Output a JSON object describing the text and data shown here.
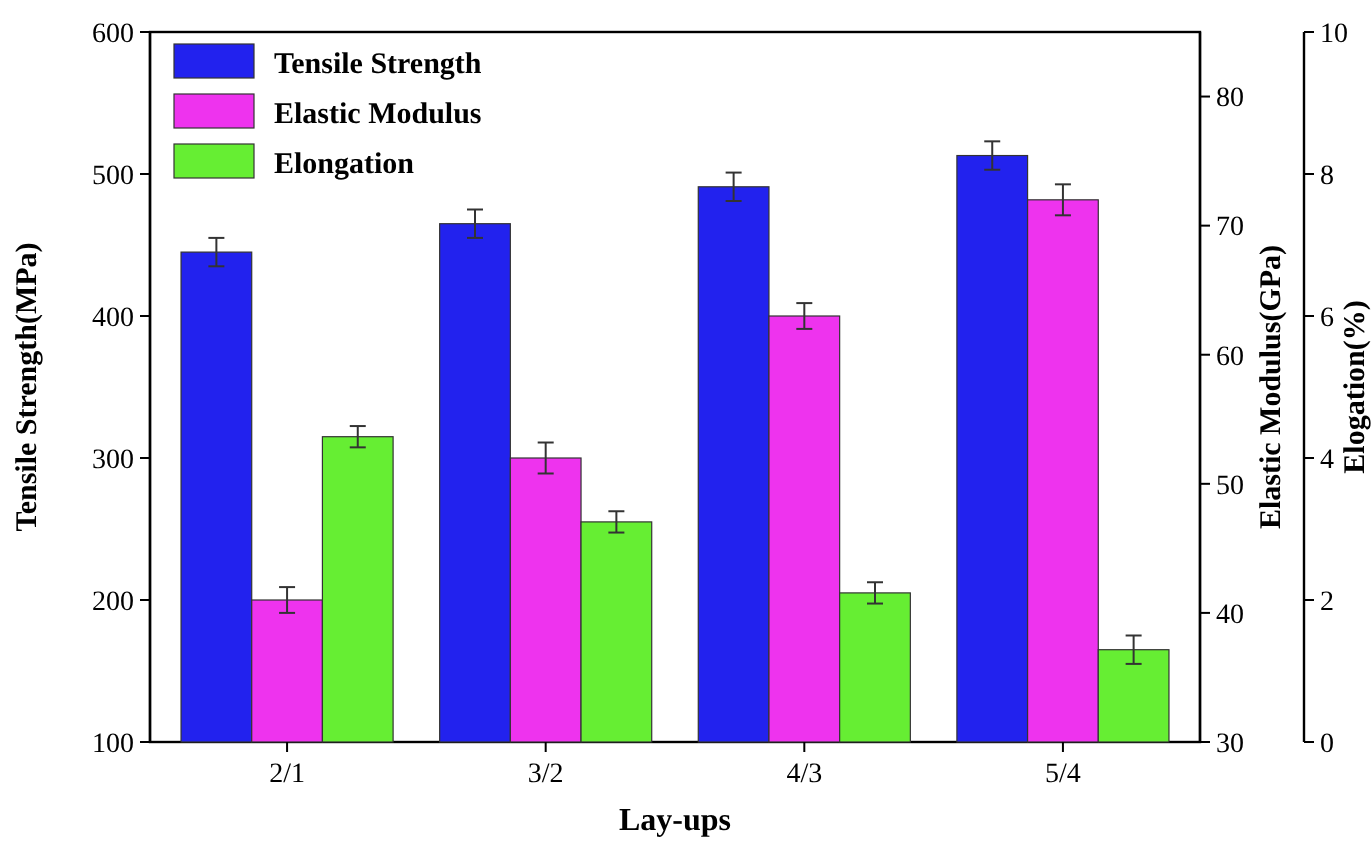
{
  "chart_data": {
    "type": "bar",
    "xlabel": "Lay-ups",
    "ylabel": "Tensile Strength(MPa)",
    "y2label": "Elastic Modulus(GPa)",
    "y3label": "Elogation(%)",
    "categories": [
      "2/1",
      "3/2",
      "4/3",
      "5/4"
    ],
    "series": [
      {
        "name": "Tensile Strength",
        "color": "#2222ee",
        "values": [
          445,
          465,
          491,
          513
        ],
        "errors": [
          10,
          10,
          10,
          10
        ]
      },
      {
        "name": "Elastic Modulus",
        "color": "#ee33ee",
        "values": [
          41,
          52,
          63,
          72
        ],
        "errors": [
          1,
          1.2,
          1,
          1.2
        ],
        "axis": "y2"
      },
      {
        "name": "Elongation",
        "color": "#66ee33",
        "values": [
          4.3,
          3.1,
          2.1,
          1.3
        ],
        "errors": [
          0.15,
          0.15,
          0.15,
          0.2
        ],
        "axis": "y3"
      }
    ],
    "ylim": [
      100,
      600
    ],
    "yticks": [
      100,
      200,
      300,
      400,
      500,
      600
    ],
    "y2lim": [
      30,
      85
    ],
    "y2ticks": [
      30,
      40,
      50,
      60,
      70,
      80
    ],
    "y3lim": [
      0,
      10
    ],
    "y3ticks": [
      0,
      2,
      4,
      6,
      8,
      10
    ],
    "legend": "top left",
    "grid": false
  }
}
